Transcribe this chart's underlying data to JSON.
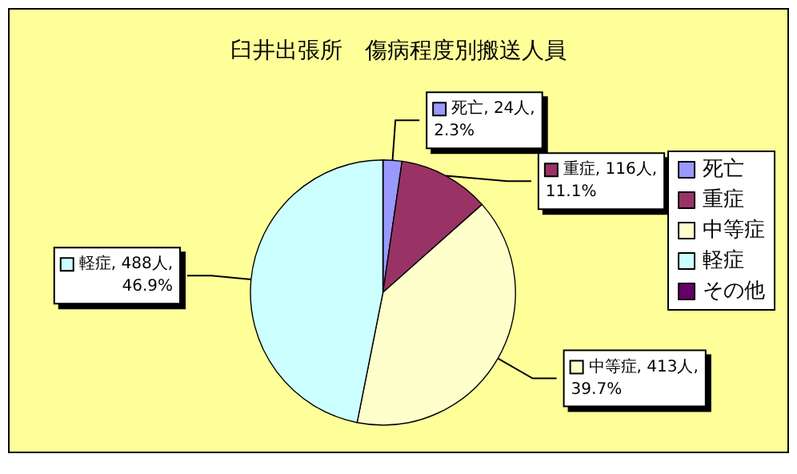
{
  "chart_data": {
    "type": "pie",
    "title": "臼井出張所　傷病程度別搬送人員",
    "categories": [
      "死亡",
      "重症",
      "中等症",
      "軽症",
      "その他"
    ],
    "values": [
      24,
      116,
      413,
      488,
      0
    ],
    "colors": [
      "#9999ff",
      "#993366",
      "#ffffcc",
      "#ccffff",
      "#660066"
    ],
    "value_labels": [
      "死亡, 24人, 2.3%",
      "重症, 116人, 11.1%",
      "中等症, 413人, 39.7%",
      "軽症, 488人, 46.9%",
      null
    ],
    "legend": "right"
  }
}
